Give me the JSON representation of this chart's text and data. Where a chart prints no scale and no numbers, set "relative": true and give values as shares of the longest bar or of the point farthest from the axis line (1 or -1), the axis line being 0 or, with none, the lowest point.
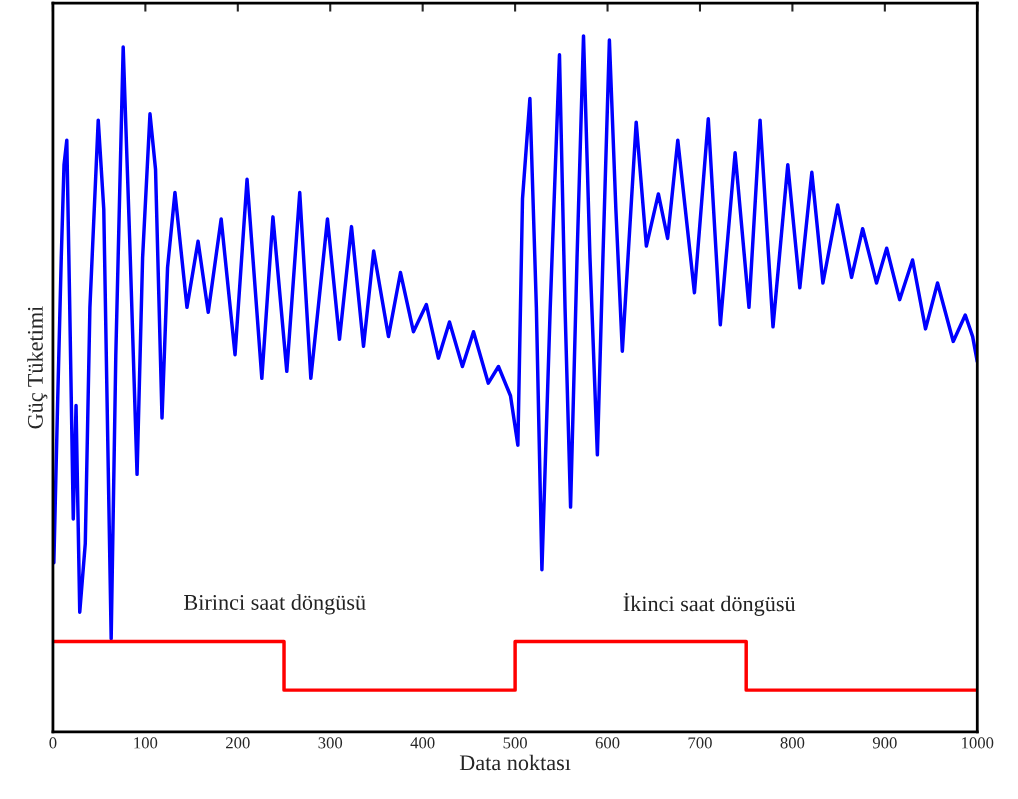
{
  "chart_data": {
    "type": "line",
    "relative": true,
    "xlabel": "Data noktası",
    "ylabel": "Güç Tüketimi",
    "xlim": [
      0,
      1000
    ],
    "xticks": [
      0,
      100,
      200,
      300,
      400,
      500,
      600,
      700,
      800,
      900,
      1000
    ],
    "grid": false,
    "legend": false,
    "series": [
      {
        "color": "#0000ff",
        "x": [
          1,
          5,
          9,
          12,
          15,
          18,
          22,
          25,
          29,
          35,
          40,
          49,
          55,
          63,
          68,
          76,
          83,
          91,
          97,
          105,
          111,
          118,
          124,
          132,
          145,
          157,
          168,
          182,
          197,
          210,
          226,
          238,
          253,
          267,
          279,
          297,
          310,
          323,
          336,
          347,
          363,
          376,
          390,
          404,
          417,
          429,
          443,
          455,
          471,
          482,
          495,
          503,
          508,
          516,
          523,
          529,
          538,
          548,
          554,
          560,
          567,
          574,
          581,
          589,
          595,
          602,
          609,
          616,
          631,
          642,
          655,
          665,
          676,
          694,
          709,
          722,
          738,
          753,
          765,
          779,
          795,
          808,
          821,
          833,
          849,
          864,
          876,
          891,
          902,
          916,
          930,
          944,
          957,
          974,
          987,
          995,
          1000
        ],
        "values": [
          0.243,
          0.469,
          0.681,
          0.815,
          0.85,
          0.624,
          0.306,
          0.469,
          0.172,
          0.271,
          0.61,
          0.879,
          0.751,
          0.134,
          0.54,
          0.984,
          0.709,
          0.37,
          0.681,
          0.888,
          0.808,
          0.451,
          0.667,
          0.775,
          0.61,
          0.705,
          0.603,
          0.737,
          0.542,
          0.794,
          0.508,
          0.74,
          0.518,
          0.775,
          0.508,
          0.737,
          0.564,
          0.726,
          0.554,
          0.691,
          0.568,
          0.66,
          0.575,
          0.614,
          0.537,
          0.589,
          0.525,
          0.575,
          0.501,
          0.525,
          0.483,
          0.412,
          0.766,
          0.91,
          0.61,
          0.233,
          0.61,
          0.973,
          0.61,
          0.323,
          0.681,
          1.0,
          0.681,
          0.398,
          0.681,
          0.994,
          0.751,
          0.547,
          0.876,
          0.698,
          0.773,
          0.709,
          0.85,
          0.631,
          0.881,
          0.585,
          0.832,
          0.61,
          0.879,
          0.582,
          0.815,
          0.638,
          0.804,
          0.645,
          0.757,
          0.653,
          0.723,
          0.645,
          0.695,
          0.621,
          0.678,
          0.579,
          0.645,
          0.561,
          0.599,
          0.568,
          0.532
        ]
      },
      {
        "type": "step",
        "color": "#ff0000",
        "x": [
          0,
          250,
          500,
          750,
          1000
        ],
        "values": [
          0.13,
          0.06,
          0.13,
          0.06,
          0.06
        ]
      }
    ],
    "annotations": [
      "Birinci saat döngüsü",
      "İkinci saat döngüsü"
    ]
  }
}
